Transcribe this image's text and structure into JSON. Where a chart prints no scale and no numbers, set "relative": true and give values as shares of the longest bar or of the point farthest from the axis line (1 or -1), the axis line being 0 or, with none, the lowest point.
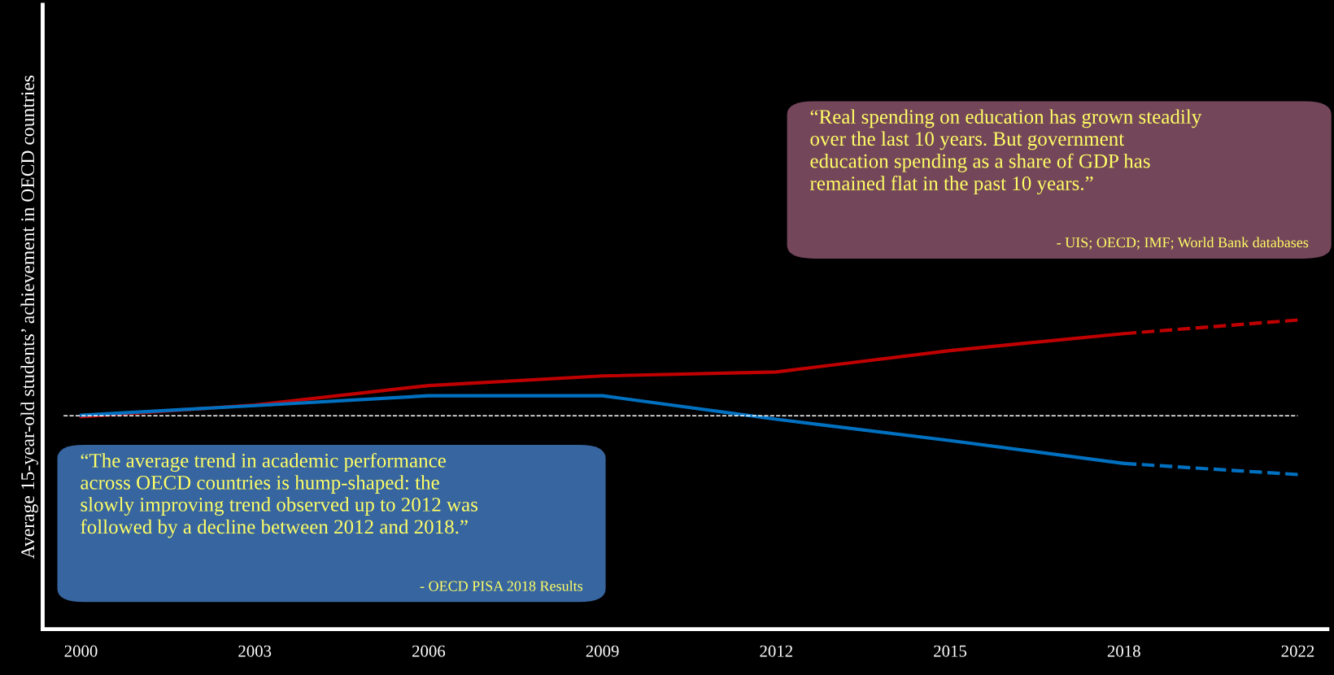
{
  "chart_data": {
    "type": "line",
    "relative": true,
    "categories": [
      "2000",
      "2003",
      "2006",
      "2009",
      "2012",
      "2015",
      "2018",
      "2022"
    ],
    "ylabel": "Average 15-year-old students’ achievement in OECD countries",
    "series": [
      {
        "color": "#c00000",
        "line_style": "solid",
        "values": [
          0.687,
          0.725,
          0.788,
          0.819,
          0.832,
          0.901,
          0.956,
          null
        ]
      },
      {
        "color": "#c00000",
        "line_style": "dashed",
        "values": [
          null,
          null,
          null,
          null,
          null,
          null,
          0.956,
          1.0
        ]
      },
      {
        "color": "#0070c0",
        "line_style": "solid",
        "values": [
          0.692,
          0.723,
          0.755,
          0.755,
          0.679,
          0.61,
          0.536,
          null
        ]
      },
      {
        "color": "#0070c0",
        "line_style": "dashed",
        "values": [
          null,
          null,
          null,
          null,
          null,
          null,
          0.536,
          0.5
        ]
      }
    ],
    "ref_lines": [
      {
        "axis": "y",
        "value": 0.69,
        "color": "#ffffff",
        "line_style": "dashed"
      }
    ],
    "annotations": [
      "“The average trend in academic performance\nacross OECD countries is hump-shaped: the\nslowly improving trend observed up to 2012 was\nfollowed by a decline between 2012 and 2018.”",
      "- OECD PISA 2018 Results",
      "“Real spending on education has grown steadily\nover the last 10 years. But government\neducation spending as a share of GDP has\nremained flat in the past 10 years.”",
      "- UIS; OECD; IMF; World Bank databases"
    ],
    "grid": false,
    "legend": false
  }
}
